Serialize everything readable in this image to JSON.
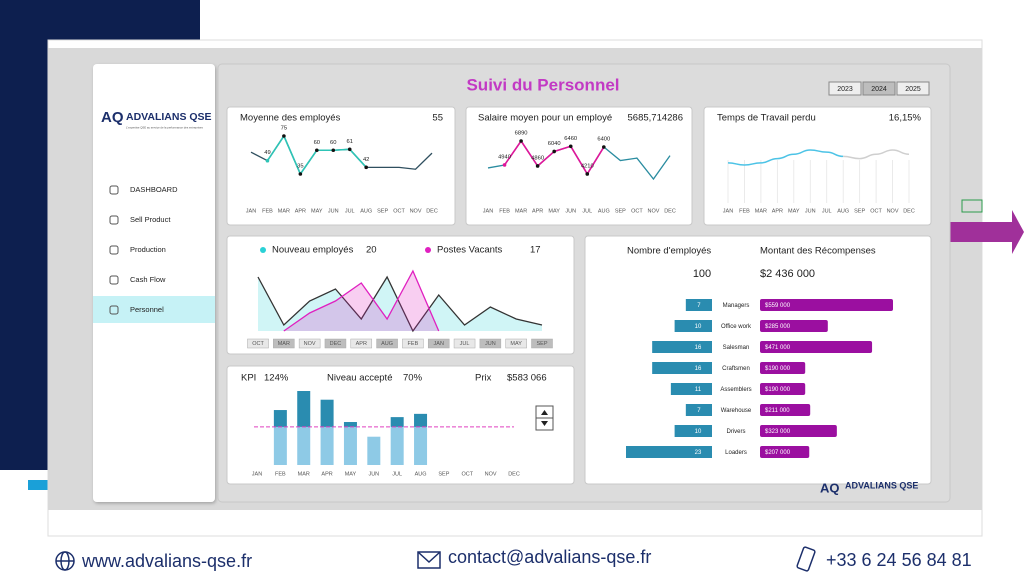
{
  "sidebar": {
    "logo": "ADVALIANS QSE",
    "tagline": "L'expertise QSE au service de la performance des entreprises",
    "menu": [
      "DASHBOARD",
      "Sell Product",
      "Production",
      "Cash Flow",
      "Personnel"
    ]
  },
  "header": {
    "title": "Suivi du Personnel",
    "years": [
      "2023",
      "2024",
      "2025"
    ]
  },
  "charts": [
    {
      "type": "line",
      "title": "Moyenne des employés",
      "total": "55",
      "categories": [
        "JAN",
        "FEB",
        "MAR",
        "APR",
        "MAY",
        "JUN",
        "JUL",
        "AUG",
        "SEP",
        "OCT",
        "NOV",
        "DEC"
      ],
      "values": [
        58,
        49,
        75,
        35,
        60,
        60,
        61,
        42,
        42,
        42,
        40,
        57
      ],
      "value_labels": [
        null,
        "49",
        "75",
        "35",
        "60",
        "60",
        "61",
        "42",
        null,
        null,
        null,
        null
      ],
      "color": "#2f4f5f",
      "highlight_color": "#2ec4b6"
    },
    {
      "type": "line",
      "title": "Salaire moyen pour un employé",
      "total": "5685,714286",
      "categories": [
        "JAN",
        "FEB",
        "MAR",
        "APR",
        "MAY",
        "JUN",
        "JUL",
        "AUG",
        "SEP",
        "OCT",
        "NOV",
        "DEC"
      ],
      "values": [
        4700,
        4940,
        6890,
        4860,
        6040,
        6460,
        4210,
        6400,
        5300,
        5500,
        3800,
        5700
      ],
      "value_labels": [
        null,
        "4940",
        "6890",
        "4860",
        "6040",
        "6460",
        "4210",
        "6400",
        null,
        null,
        null,
        null
      ],
      "color": "#2a8ca0",
      "highlight_color": "#e0169a"
    },
    {
      "type": "spline",
      "title": "Temps de Travail perdu",
      "total": "16,15%",
      "categories": [
        "JAN",
        "FEB",
        "MAR",
        "APR",
        "MAY",
        "JUN",
        "JUL",
        "AUG",
        "SEP",
        "OCT",
        "NOV",
        "DEC"
      ],
      "series": [
        {
          "color": "#4cc3e6",
          "values": [
            38,
            36,
            38,
            42,
            46,
            50,
            48,
            44,
            null,
            null,
            null,
            null
          ]
        },
        {
          "color": "#cfcfcf",
          "values": [
            null,
            null,
            null,
            null,
            null,
            null,
            null,
            44,
            42,
            46,
            50,
            46
          ]
        }
      ]
    },
    {
      "type": "area-line",
      "categories": [
        "OCT",
        "MAR",
        "NOV",
        "DEC",
        "APR",
        "AUG",
        "FEB",
        "JAN",
        "JUL",
        "JUN",
        "MAY",
        "SEP"
      ],
      "series": [
        {
          "name": "Nouveau employés",
          "total": "20",
          "color": "#2ad1d6",
          "line_color": "#333333",
          "values": [
            9,
            1,
            5,
            7,
            2,
            9,
            0,
            6,
            1,
            4,
            2,
            1
          ]
        },
        {
          "name": "Postes Vacants",
          "total": "17",
          "color": "#e020c0",
          "line_color": "#e020c0",
          "values": [
            null,
            0,
            3,
            5,
            8,
            2,
            10,
            0,
            null,
            null,
            null,
            null
          ]
        }
      ]
    },
    {
      "type": "bar",
      "kpi_label": "KPI",
      "kpi": "124%",
      "threshold_label": "Niveau accepté",
      "threshold": {
        "value": 70,
        "label": "70%"
      },
      "price_label": "Prix",
      "price": "$583 066",
      "categories": [
        "JAN",
        "FEB",
        "MAR",
        "APR",
        "MAY",
        "JUN",
        "JUL",
        "AUG",
        "SEP",
        "OCT",
        "NOV",
        "DEC"
      ],
      "values": [
        null,
        101,
        136,
        120,
        79,
        52,
        88,
        94,
        null,
        null,
        null,
        null
      ],
      "color": "#8ecae6",
      "over_color": "#2a8cb0",
      "threshold_color": "#e040c0"
    },
    {
      "type": "hbar",
      "left_title": "Nombre d'employés",
      "left_total": "100",
      "right_title": "Montant des Récompenses",
      "right_total": "$2 436 000",
      "categories": [
        "Managers",
        "Office work",
        "Salesman",
        "Craftsmen",
        "Assemblers",
        "Warehouse",
        "Drivers",
        "Loaders"
      ],
      "series": [
        {
          "color": "#2a8cb0",
          "values": [
            7,
            10,
            16,
            16,
            11,
            7,
            10,
            23
          ]
        },
        {
          "color": "#9b0fa0",
          "values": [
            559000,
            285000,
            471000,
            190000,
            190000,
            211000,
            323000,
            207000
          ],
          "value_labels": [
            "$559 000",
            "$285 000",
            "$471 000",
            "$190 000",
            "$190 000",
            "$211 000",
            "$323 000",
            "$207 000"
          ]
        }
      ]
    }
  ],
  "footer": {
    "website": "www.advalians-qse.fr",
    "email": "contact@advalians-qse.fr",
    "phone": "+33 6 24 56 84 81"
  }
}
